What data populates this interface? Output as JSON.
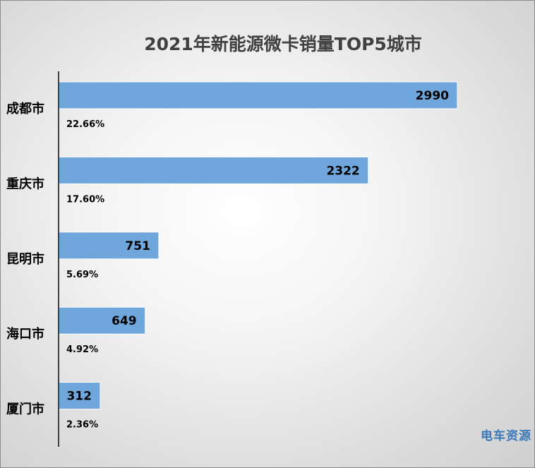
{
  "chart_data": {
    "type": "bar",
    "orientation": "horizontal",
    "title": "2021年新能源微卡销量TOP5城市",
    "categories": [
      "成都市",
      "重庆市",
      "昆明市",
      "海口市",
      "厦门市"
    ],
    "values": [
      2990,
      2322,
      751,
      649,
      312
    ],
    "shares": [
      "22.66%",
      "17.60%",
      "5.69%",
      "4.92%",
      "2.36%"
    ],
    "bar_color": "#6fa6dc",
    "grid": false,
    "legend": "none"
  },
  "watermark": "电车资源"
}
